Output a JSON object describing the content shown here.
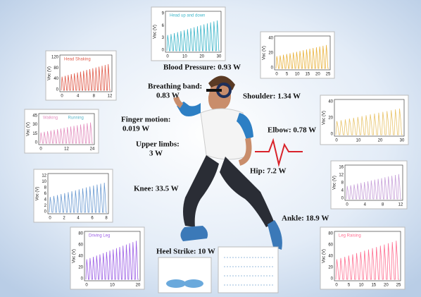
{
  "labels": [
    "Blood Pressure: 0.93 W",
    "Breathing band:",
    "0.83 W",
    "Shoulder: 1.34 W",
    "Finger motion:",
    "0.019 W",
    "Elbow: 0.78 W",
    "Upper limbs:",
    "3 W",
    "Hip: 7.2 W",
    "Knee: 33.5 W",
    "Ankle: 18.9 W",
    "Heel Strike: 10 W"
  ],
  "insets": [
    {
      "titles": [
        "Head up and down"
      ],
      "y_label": "Voc (V)",
      "yticks": [
        "9",
        "6",
        "3",
        "0"
      ],
      "xticks": [
        "0",
        "10",
        "20",
        "30"
      ]
    },
    {
      "titles": [
        "Head Shaking"
      ],
      "y_label": "Voc (V)",
      "yticks": [
        "120",
        "80",
        "40",
        "0"
      ],
      "xticks": [
        "0",
        "4",
        "8",
        "12"
      ]
    },
    {
      "titles": [],
      "y_label": "Voc (V)",
      "yticks": [
        "40",
        "20",
        "0"
      ],
      "xticks": [
        "0",
        "5",
        "10",
        "15",
        "20",
        "25"
      ]
    },
    {
      "titles": [
        "Walking",
        "Running"
      ],
      "y_label": "Voc (V)",
      "yticks": [
        "45",
        "30",
        "15",
        "0"
      ],
      "xticks": [
        "0",
        "12",
        "24"
      ]
    },
    {
      "titles": [],
      "y_label": "Voc (V)",
      "yticks": [
        "40",
        "20",
        "0"
      ],
      "xticks": [
        "0",
        "10",
        "20",
        "30"
      ]
    },
    {
      "titles": [],
      "y_label": "Voc (V)",
      "yticks": [
        "12",
        "10",
        "8",
        "6",
        "4",
        "2",
        "0"
      ],
      "xticks": [
        "0",
        "2",
        "4",
        "6",
        "8"
      ]
    },
    {
      "titles": [],
      "y_label": "Voc (V)",
      "yticks": [
        "16",
        "12",
        "8",
        "4",
        "0"
      ],
      "xticks": [
        "0",
        "4",
        "8",
        "12"
      ]
    },
    {
      "titles": [
        "Driving Leg"
      ],
      "y_label": "Voc (V)",
      "yticks": [
        "80",
        "60",
        "40",
        "20",
        "0"
      ],
      "xticks": [
        "0",
        "10",
        "20"
      ]
    },
    {
      "titles": [
        "Leg Raising"
      ],
      "y_label": "Voc (V)",
      "yticks": [
        "80",
        "60",
        "40",
        "20",
        "0"
      ],
      "xticks": [
        "0",
        "5",
        "10",
        "15",
        "20",
        "25"
      ]
    }
  ]
}
